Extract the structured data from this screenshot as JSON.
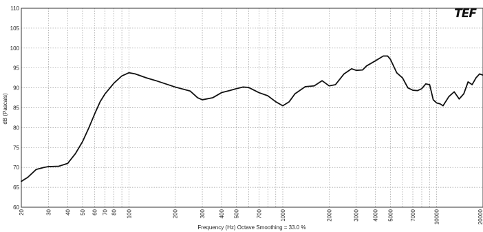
{
  "logo": "TEF",
  "chart_data": {
    "type": "line",
    "title": "",
    "xlabel": "Frequency (Hz) Octave Smoothing = 33.0 %",
    "ylabel": "dB (Pascals)",
    "x_scale": "log",
    "xlim": [
      20,
      20000
    ],
    "ylim": [
      60,
      110
    ],
    "grid": true,
    "yticks": [
      60,
      65,
      70,
      75,
      80,
      85,
      90,
      95,
      100,
      105,
      110
    ],
    "xticks": [
      {
        "value": 20,
        "label": "20"
      },
      {
        "value": 30,
        "label": "30"
      },
      {
        "value": 40,
        "label": "40"
      },
      {
        "value": 50,
        "label": "50"
      },
      {
        "value": 60,
        "label": "60"
      },
      {
        "value": 70,
        "label": "70"
      },
      {
        "value": 80,
        "label": "80"
      },
      {
        "value": 100,
        "label": "100"
      },
      {
        "value": 200,
        "label": "200"
      },
      {
        "value": 300,
        "label": "300"
      },
      {
        "value": 400,
        "label": "400"
      },
      {
        "value": 500,
        "label": "500"
      },
      {
        "value": 700,
        "label": "700"
      },
      {
        "value": 1000,
        "label": "1000"
      },
      {
        "value": 2000,
        "label": "2000"
      },
      {
        "value": 3000,
        "label": "3000"
      },
      {
        "value": 4000,
        "label": "4000"
      },
      {
        "value": 5000,
        "label": "5000"
      },
      {
        "value": 7000,
        "label": "7000"
      },
      {
        "value": 10000,
        "label": "10000"
      },
      {
        "value": 20000,
        "label": "20000"
      }
    ],
    "series": [
      {
        "color": "#111111",
        "x": [
          20,
          22,
          25,
          28,
          30,
          35,
          40,
          45,
          50,
          55,
          60,
          65,
          70,
          80,
          90,
          100,
          110,
          130,
          150,
          200,
          250,
          280,
          300,
          350,
          400,
          450,
          500,
          550,
          600,
          700,
          800,
          900,
          1000,
          1100,
          1200,
          1400,
          1600,
          1800,
          2000,
          2200,
          2500,
          2800,
          3000,
          3300,
          3500,
          4000,
          4500,
          4800,
          5000,
          5500,
          6000,
          6500,
          7000,
          7500,
          8000,
          8500,
          9000,
          9500,
          10000,
          10500,
          11000,
          12000,
          13000,
          14000,
          15000,
          16000,
          17000,
          18000,
          19000,
          20000
        ],
        "values": [
          66.5,
          67.5,
          69.5,
          70.0,
          70.2,
          70.3,
          71.0,
          73.5,
          76.5,
          80.0,
          83.5,
          86.5,
          88.5,
          91.2,
          93.0,
          93.8,
          93.5,
          92.5,
          91.8,
          90.2,
          89.2,
          87.5,
          87.0,
          87.5,
          88.8,
          89.3,
          89.8,
          90.2,
          90.1,
          88.8,
          88.0,
          86.5,
          85.5,
          86.5,
          88.5,
          90.3,
          90.5,
          91.8,
          90.5,
          90.8,
          93.5,
          94.8,
          94.4,
          94.5,
          95.5,
          96.8,
          98.0,
          98.0,
          97.2,
          93.8,
          92.5,
          90.0,
          89.4,
          89.3,
          89.8,
          91.0,
          90.8,
          87.0,
          86.2,
          86.0,
          85.5,
          87.8,
          89.0,
          87.2,
          88.5,
          91.5,
          90.8,
          92.5,
          93.5,
          93.2
        ]
      }
    ]
  }
}
